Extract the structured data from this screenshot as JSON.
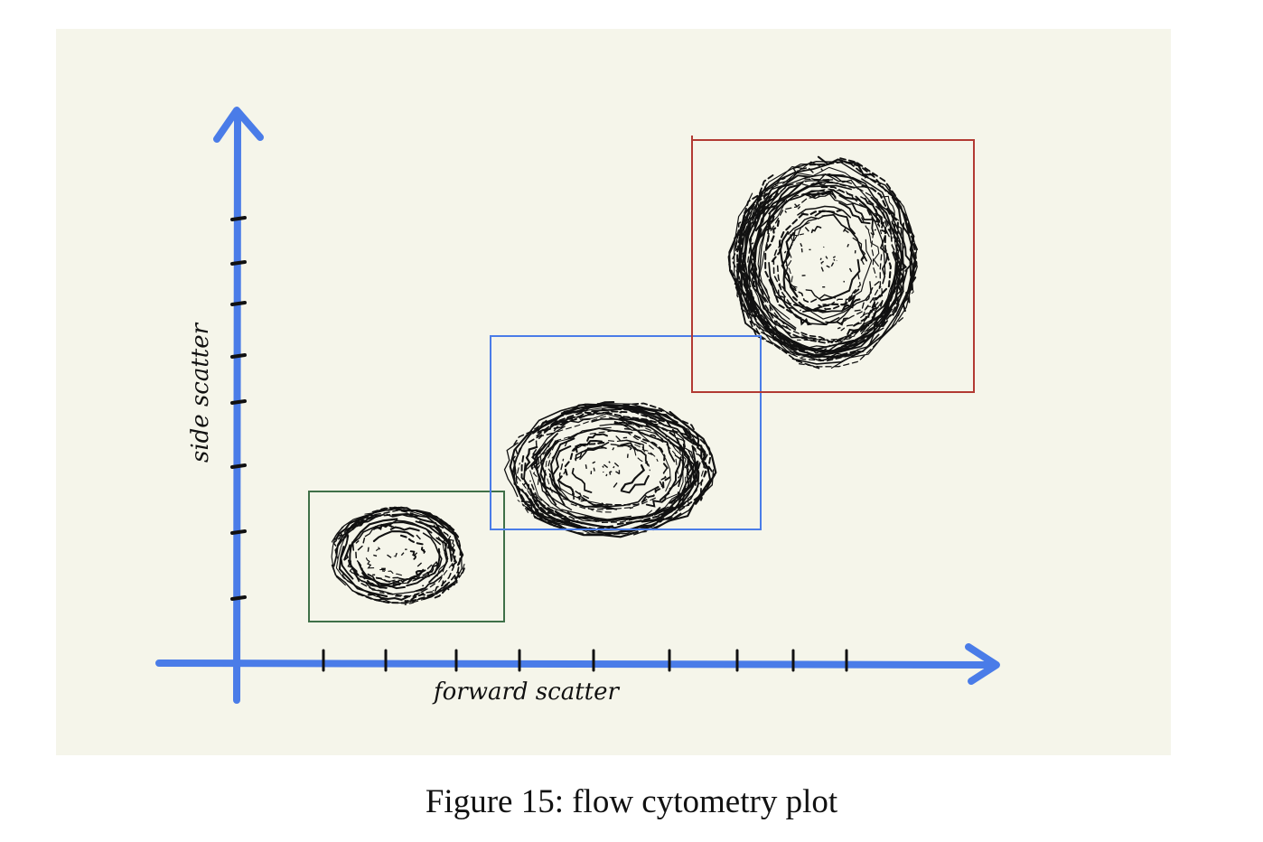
{
  "caption": "Figure 15: flow cytometry plot",
  "axes": {
    "x_label": "forward scatter",
    "y_label": "side scatter",
    "color": "#4a7ce8"
  },
  "colors": {
    "background": "#f5f5ea",
    "cluster_ink": "#111111"
  },
  "gates": [
    {
      "name": "green-gate",
      "color": "#3f7048"
    },
    {
      "name": "blue-gate",
      "color": "#4a7ce8"
    },
    {
      "name": "red-gate",
      "color": "#b23a33"
    }
  ],
  "clusters": [
    {
      "name": "small-cluster"
    },
    {
      "name": "medium-cluster"
    },
    {
      "name": "large-cluster"
    }
  ]
}
